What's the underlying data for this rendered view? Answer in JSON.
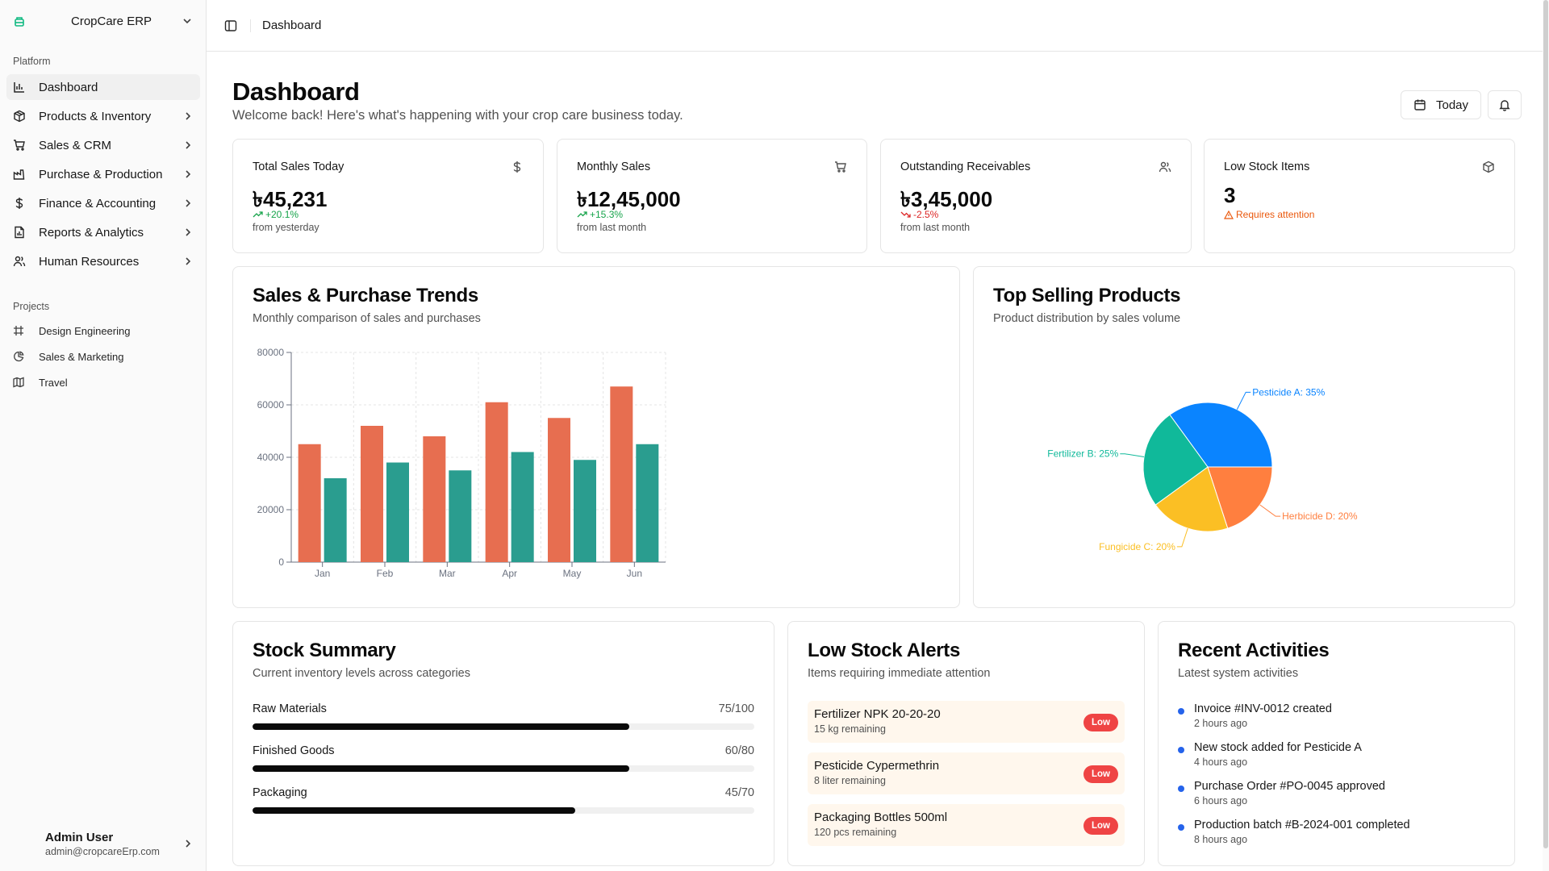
{
  "app": {
    "name": "CropCare ERP"
  },
  "sidebar": {
    "platform_label": "Platform",
    "items": [
      {
        "label": "Dashboard",
        "icon": "bar-chart-icon"
      },
      {
        "label": "Products & Inventory",
        "icon": "package-icon"
      },
      {
        "label": "Sales & CRM",
        "icon": "cart-icon"
      },
      {
        "label": "Purchase & Production",
        "icon": "factory-icon"
      },
      {
        "label": "Finance & Accounting",
        "icon": "dollar-icon"
      },
      {
        "label": "Reports & Analytics",
        "icon": "report-icon"
      },
      {
        "label": "Human Resources",
        "icon": "users-icon"
      }
    ],
    "projects_label": "Projects",
    "projects": [
      {
        "label": "Design Engineering",
        "icon": "frame-icon"
      },
      {
        "label": "Sales & Marketing",
        "icon": "pie-icon"
      },
      {
        "label": "Travel",
        "icon": "map-icon"
      }
    ],
    "user": {
      "name": "Admin User",
      "email": "admin@cropcareErp.com"
    }
  },
  "header": {
    "breadcrumb": "Dashboard"
  },
  "page": {
    "title": "Dashboard",
    "subtitle": "Welcome back! Here's what's happening with your crop care business today.",
    "today_button": "Today"
  },
  "stats": [
    {
      "title": "Total Sales Today",
      "value": "৳45,231",
      "change": "+20.1%",
      "note": "from yesterday",
      "trend": "up",
      "icon": "dollar-icon"
    },
    {
      "title": "Monthly Sales",
      "value": "৳12,45,000",
      "change": "+15.3%",
      "note": "from last month",
      "trend": "up",
      "icon": "cart-icon"
    },
    {
      "title": "Outstanding Receivables",
      "value": "৳3,45,000",
      "change": "-2.5%",
      "note": "from last month",
      "trend": "down",
      "icon": "users-icon"
    },
    {
      "title": "Low Stock Items",
      "value": "3",
      "change": "Requires attention",
      "note": "",
      "trend": "warn",
      "icon": "box-icon"
    }
  ],
  "trends_card": {
    "title": "Sales & Purchase Trends",
    "subtitle": "Monthly comparison of sales and purchases"
  },
  "top_card": {
    "title": "Top Selling Products",
    "subtitle": "Product distribution by sales volume"
  },
  "chart_data": [
    {
      "type": "bar",
      "categories": [
        "Jan",
        "Feb",
        "Mar",
        "Apr",
        "May",
        "Jun"
      ],
      "series": [
        {
          "values": [
            45000,
            52000,
            48000,
            61000,
            55000,
            67000
          ],
          "color": "#e76e50"
        },
        {
          "values": [
            32000,
            38000,
            35000,
            42000,
            39000,
            45000
          ],
          "color": "#2a9d8f"
        }
      ],
      "yticks": [
        0,
        20000,
        40000,
        60000,
        80000
      ],
      "ylim": [
        0,
        80000
      ],
      "grid": true
    },
    {
      "type": "pie",
      "slices": [
        {
          "label": "Pesticide A: 35%",
          "value": 35,
          "color": "#0a84ff"
        },
        {
          "label": "Herbicide D: 20%",
          "value": 20,
          "color": "#ff7f3f"
        },
        {
          "label": "Fungicide C: 20%",
          "value": 20,
          "color": "#fbbf24"
        },
        {
          "label": "Fertilizer B: 25%",
          "value": 25,
          "color": "#10b99a"
        }
      ]
    }
  ],
  "stock_summary": {
    "title": "Stock Summary",
    "subtitle": "Current inventory levels across categories",
    "items": [
      {
        "name": "Raw Materials",
        "qty": "75/100",
        "fraction": 0.75
      },
      {
        "name": "Finished Goods",
        "qty": "60/80",
        "fraction": 0.75
      },
      {
        "name": "Packaging",
        "qty": "45/70",
        "fraction": 0.643
      }
    ]
  },
  "low_stock": {
    "title": "Low Stock Alerts",
    "subtitle": "Items requiring immediate attention",
    "items": [
      {
        "name": "Fertilizer NPK 20-20-20",
        "remaining": "15 kg remaining",
        "badge": "Low"
      },
      {
        "name": "Pesticide Cypermethrin",
        "remaining": "8 liter remaining",
        "badge": "Low"
      },
      {
        "name": "Packaging Bottles 500ml",
        "remaining": "120 pcs remaining",
        "badge": "Low"
      }
    ]
  },
  "activities": {
    "title": "Recent Activities",
    "subtitle": "Latest system activities",
    "items": [
      {
        "text": "Invoice #INV-0012 created",
        "time": "2 hours ago"
      },
      {
        "text": "New stock added for Pesticide A",
        "time": "4 hours ago"
      },
      {
        "text": "Purchase Order #PO-0045 approved",
        "time": "6 hours ago"
      },
      {
        "text": "Production batch #B-2024-001 completed",
        "time": "8 hours ago"
      }
    ]
  }
}
